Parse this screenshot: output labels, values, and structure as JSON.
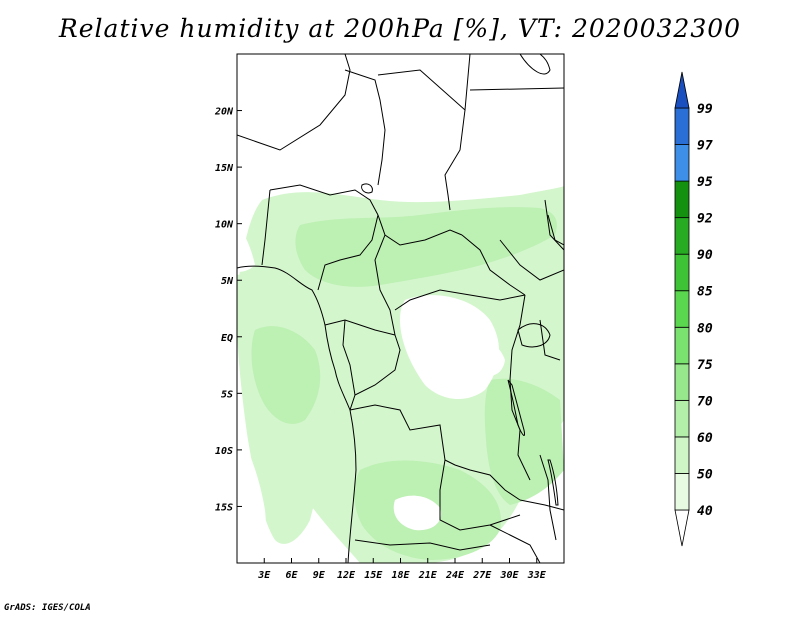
{
  "title": "Relative humidity at 200hPa [%], VT: 2020032300",
  "credit": "GrADS: IGES/COLA",
  "map": {
    "lon_range": [
      0,
      36
    ],
    "lat_range": [
      -20,
      25
    ],
    "x_ticks": [
      {
        "lon": 3,
        "label": "3E"
      },
      {
        "lon": 6,
        "label": "6E"
      },
      {
        "lon": 9,
        "label": "9E"
      },
      {
        "lon": 12,
        "label": "12E"
      },
      {
        "lon": 15,
        "label": "15E"
      },
      {
        "lon": 18,
        "label": "18E"
      },
      {
        "lon": 21,
        "label": "21E"
      },
      {
        "lon": 24,
        "label": "24E"
      },
      {
        "lon": 27,
        "label": "27E"
      },
      {
        "lon": 30,
        "label": "30E"
      },
      {
        "lon": 33,
        "label": "33E"
      }
    ],
    "y_ticks": [
      {
        "lat": 20,
        "label": "20N"
      },
      {
        "lat": 15,
        "label": "15N"
      },
      {
        "lat": 10,
        "label": "10N"
      },
      {
        "lat": 5,
        "label": "5N"
      },
      {
        "lat": 0,
        "label": "EQ"
      },
      {
        "lat": -5,
        "label": "5S"
      },
      {
        "lat": -10,
        "label": "10S"
      },
      {
        "lat": -15,
        "label": "15S"
      }
    ]
  },
  "colorbar": {
    "bins": [
      {
        "color": "#ffffff"
      },
      {
        "color": "#e7fbe3"
      },
      {
        "color": "#cdf5c6"
      },
      {
        "color": "#b3efa9"
      },
      {
        "color": "#97e88c"
      },
      {
        "color": "#7ae26e"
      },
      {
        "color": "#5bd64f"
      },
      {
        "color": "#3ec236"
      },
      {
        "color": "#27ab22"
      },
      {
        "color": "#14920f"
      },
      {
        "color": "#3d8fe8"
      },
      {
        "color": "#2a6fd6"
      },
      {
        "color": "#1a4fbf"
      }
    ],
    "labels": [
      "40",
      "50",
      "60",
      "70",
      "75",
      "80",
      "85",
      "90",
      "92",
      "95",
      "97",
      "99"
    ]
  },
  "colors": {
    "land_line": "#000000",
    "humid_light": "#d3f6cc",
    "humid_mid": "#bdf0b3",
    "humid_dense": "#a7eb9c"
  }
}
